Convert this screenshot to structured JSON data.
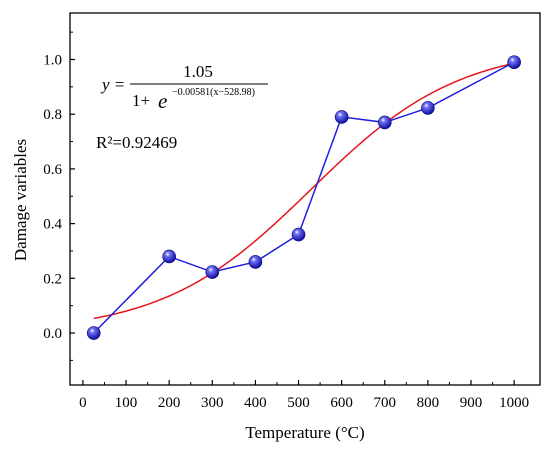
{
  "chart_data": {
    "type": "scatter",
    "title": "",
    "xlabel": "Temperature (°C)",
    "ylabel": "Damage variables",
    "xlim": [
      -30,
      1060
    ],
    "ylim": [
      -0.19,
      1.17
    ],
    "xticks": [
      0,
      100,
      200,
      300,
      400,
      500,
      600,
      700,
      800,
      900,
      1000
    ],
    "yticks": [
      0.0,
      0.2,
      0.4,
      0.6,
      0.8,
      1.0
    ],
    "xtick_labels": [
      "0",
      "100",
      "200",
      "300",
      "400",
      "500",
      "600",
      "700",
      "800",
      "900",
      "1000"
    ],
    "ytick_labels": [
      "0.0",
      "0.2",
      "0.4",
      "0.6",
      "0.8",
      "1.0"
    ],
    "grid": false,
    "legend": "none",
    "series": [
      {
        "kind": "line+markers",
        "color": "#1f1fe0",
        "marker_color": "#1010d0",
        "x": [
          25,
          200,
          300,
          400,
          500,
          600,
          700,
          800,
          1000
        ],
        "y": [
          0.0,
          0.28,
          0.223,
          0.26,
          0.36,
          0.79,
          0.77,
          0.823,
          0.99
        ]
      },
      {
        "kind": "fit-curve",
        "color": "#e8141c",
        "equation": {
          "A": 1.05,
          "k": 0.00581,
          "x0": 528.98
        },
        "x_range": [
          25,
          1000
        ]
      }
    ],
    "annotations": {
      "equation": {
        "lhs": "y =",
        "numerator": "1.05",
        "denominator_base": "1+",
        "e": "e",
        "exponent": "−0.00581(x−528.98)"
      },
      "r_squared": "R²=0.92469"
    }
  }
}
